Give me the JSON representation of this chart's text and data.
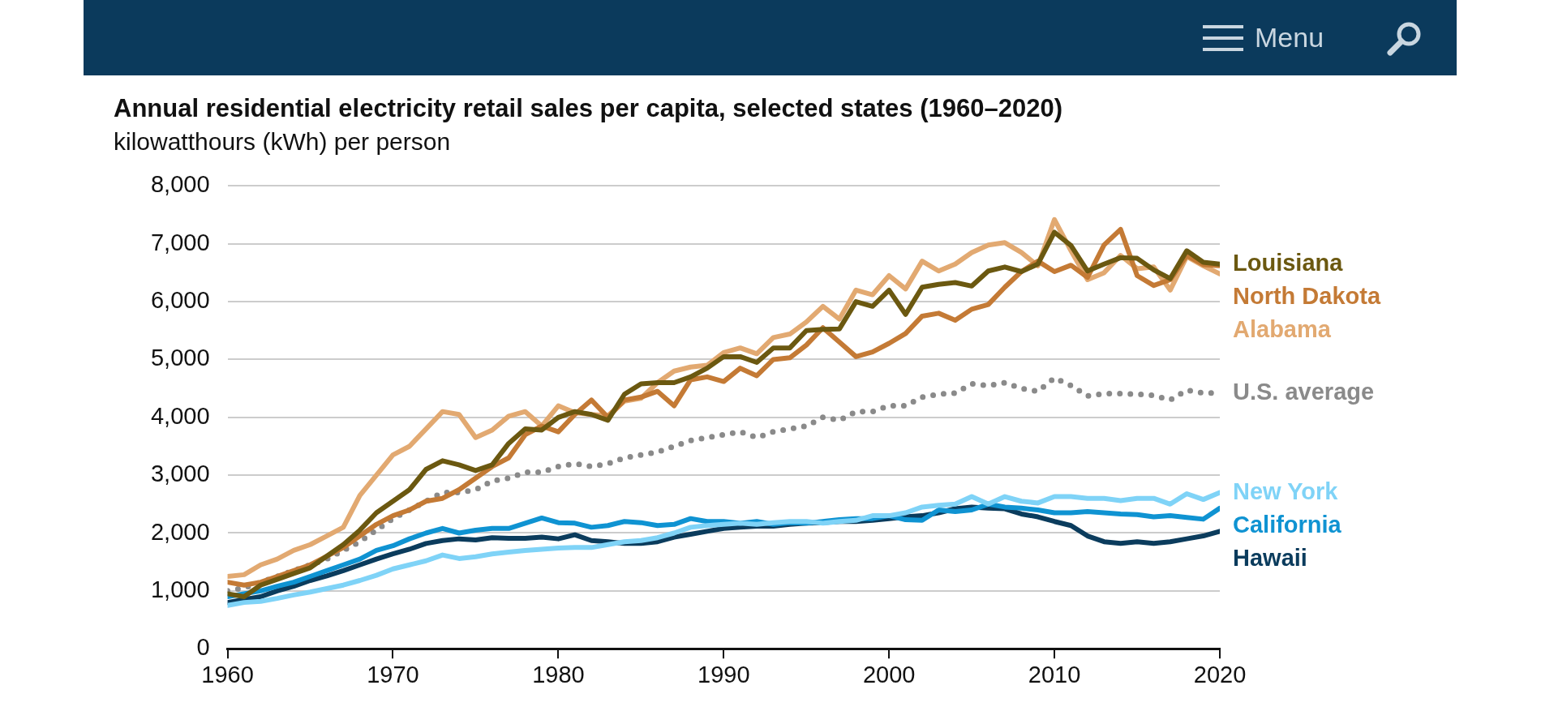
{
  "chart_data": {
    "type": "line",
    "title": "Annual residential electricity retail sales per capita, selected states (1960–2020)",
    "subtitle": "kilowatthours (kWh) per person",
    "annotations": [
      "Menu"
    ],
    "x": [
      1960,
      1961,
      1962,
      1963,
      1964,
      1965,
      1966,
      1967,
      1968,
      1969,
      1970,
      1971,
      1972,
      1973,
      1974,
      1975,
      1976,
      1977,
      1978,
      1979,
      1980,
      1981,
      1982,
      1983,
      1984,
      1985,
      1986,
      1987,
      1988,
      1989,
      1990,
      1991,
      1992,
      1993,
      1994,
      1995,
      1996,
      1997,
      1998,
      1999,
      2000,
      2001,
      2002,
      2003,
      2004,
      2005,
      2006,
      2007,
      2008,
      2009,
      2010,
      2011,
      2012,
      2013,
      2014,
      2015,
      2016,
      2017,
      2018,
      2019,
      2020
    ],
    "xlim": [
      1960,
      2020
    ],
    "xticks": [
      1960,
      1970,
      1980,
      1990,
      2000,
      2010,
      2020
    ],
    "ylim": [
      0,
      8000
    ],
    "yticks": [
      {
        "value": 0,
        "label": "0"
      },
      {
        "value": 1000,
        "label": "1,000"
      },
      {
        "value": 2000,
        "label": "2,000"
      },
      {
        "value": 3000,
        "label": "3,000"
      },
      {
        "value": 4000,
        "label": "4,000"
      },
      {
        "value": 5000,
        "label": "5,000"
      },
      {
        "value": 6000,
        "label": "6,000"
      },
      {
        "value": 7000,
        "label": "7,000"
      },
      {
        "value": 8000,
        "label": "8,000"
      }
    ],
    "grid": "y",
    "legend": "right",
    "marker": "none",
    "line_style": "solid",
    "series": [
      {
        "name": "Louisiana",
        "color": "#6b5810",
        "values": [
          950,
          900,
          1100,
          1200,
          1300,
          1400,
          1600,
          1800,
          2050,
          2350,
          2550,
          2750,
          3100,
          3250,
          3180,
          3080,
          3180,
          3550,
          3800,
          3780,
          4000,
          4100,
          4050,
          3950,
          4400,
          4580,
          4600,
          4600,
          4700,
          4850,
          5050,
          5050,
          4950,
          5200,
          5200,
          5500,
          5520,
          5530,
          6000,
          5920,
          6200,
          5780,
          6250,
          6300,
          6330,
          6270,
          6530,
          6600,
          6520,
          6650,
          7200,
          6970,
          6530,
          6650,
          6760,
          6750,
          6550,
          6400,
          6880,
          6680,
          6650
        ]
      },
      {
        "name": "North Dakota",
        "color": "#c47a35",
        "values": [
          1150,
          1100,
          1150,
          1250,
          1350,
          1450,
          1600,
          1750,
          1950,
          2150,
          2300,
          2400,
          2550,
          2600,
          2750,
          2950,
          3150,
          3300,
          3700,
          3850,
          3750,
          4050,
          4300,
          4000,
          4300,
          4350,
          4450,
          4200,
          4650,
          4700,
          4620,
          4850,
          4720,
          5000,
          5030,
          5250,
          5550,
          5300,
          5050,
          5130,
          5280,
          5450,
          5750,
          5800,
          5680,
          5870,
          5950,
          6250,
          6520,
          6700,
          6520,
          6630,
          6420,
          6980,
          7250,
          6450,
          6280,
          6380,
          6800,
          6640,
          6620
        ]
      },
      {
        "name": "Alabama",
        "color": "#e2a971",
        "values": [
          1250,
          1280,
          1450,
          1550,
          1700,
          1800,
          1950,
          2100,
          2650,
          3000,
          3350,
          3500,
          3800,
          4100,
          4050,
          3650,
          3780,
          4020,
          4100,
          3850,
          4200,
          4080,
          4050,
          4030,
          4280,
          4330,
          4600,
          4800,
          4870,
          4900,
          5120,
          5200,
          5100,
          5380,
          5440,
          5650,
          5920,
          5700,
          6200,
          6120,
          6450,
          6220,
          6700,
          6530,
          6650,
          6850,
          6980,
          7020,
          6850,
          6620,
          7420,
          6880,
          6380,
          6500,
          6800,
          6570,
          6600,
          6200,
          6780,
          6620,
          6480
        ]
      },
      {
        "name": "U.S. average",
        "color": "#8a8a8a",
        "line_style": "dotted",
        "values": [
          1000,
          1050,
          1150,
          1250,
          1350,
          1450,
          1550,
          1700,
          1850,
          2050,
          2250,
          2400,
          2550,
          2700,
          2700,
          2750,
          2900,
          2950,
          3050,
          3050,
          3150,
          3200,
          3150,
          3200,
          3300,
          3350,
          3400,
          3500,
          3600,
          3650,
          3700,
          3750,
          3650,
          3750,
          3800,
          3850,
          4000,
          3950,
          4100,
          4100,
          4200,
          4200,
          4350,
          4400,
          4420,
          4580,
          4550,
          4600,
          4500,
          4450,
          4680,
          4550,
          4370,
          4410,
          4410,
          4400,
          4380,
          4300,
          4470,
          4420,
          4420
        ]
      },
      {
        "name": "New York",
        "color": "#7fd3f7",
        "values": [
          750,
          800,
          820,
          870,
          930,
          980,
          1040,
          1100,
          1180,
          1270,
          1380,
          1450,
          1520,
          1620,
          1560,
          1590,
          1640,
          1670,
          1700,
          1720,
          1740,
          1750,
          1750,
          1800,
          1850,
          1870,
          1920,
          2000,
          2100,
          2130,
          2150,
          2170,
          2150,
          2180,
          2200,
          2200,
          2170,
          2200,
          2220,
          2300,
          2300,
          2350,
          2450,
          2480,
          2500,
          2630,
          2500,
          2630,
          2550,
          2520,
          2630,
          2630,
          2600,
          2600,
          2560,
          2600,
          2600,
          2500,
          2680,
          2580,
          2700
        ]
      },
      {
        "name": "California",
        "color": "#0f93d2",
        "values": [
          900,
          950,
          1000,
          1080,
          1150,
          1250,
          1350,
          1450,
          1550,
          1700,
          1780,
          1900,
          2000,
          2080,
          2000,
          2050,
          2080,
          2080,
          2170,
          2260,
          2180,
          2170,
          2100,
          2130,
          2200,
          2180,
          2130,
          2150,
          2250,
          2200,
          2200,
          2170,
          2200,
          2150,
          2180,
          2170,
          2200,
          2230,
          2250,
          2250,
          2300,
          2230,
          2220,
          2400,
          2370,
          2400,
          2500,
          2450,
          2430,
          2400,
          2350,
          2350,
          2370,
          2350,
          2330,
          2320,
          2280,
          2300,
          2270,
          2240,
          2430
        ]
      },
      {
        "name": "Hawaii",
        "color": "#0b3c5d",
        "values": [
          800,
          850,
          900,
          1000,
          1080,
          1180,
          1260,
          1350,
          1450,
          1550,
          1640,
          1720,
          1820,
          1870,
          1900,
          1880,
          1920,
          1910,
          1910,
          1930,
          1900,
          1970,
          1870,
          1850,
          1820,
          1820,
          1850,
          1930,
          1980,
          2030,
          2080,
          2100,
          2120,
          2120,
          2150,
          2170,
          2180,
          2200,
          2200,
          2220,
          2250,
          2280,
          2300,
          2350,
          2420,
          2450,
          2430,
          2420,
          2330,
          2280,
          2200,
          2130,
          1950,
          1850,
          1820,
          1850,
          1820,
          1850,
          1900,
          1950,
          2030
        ]
      }
    ]
  }
}
